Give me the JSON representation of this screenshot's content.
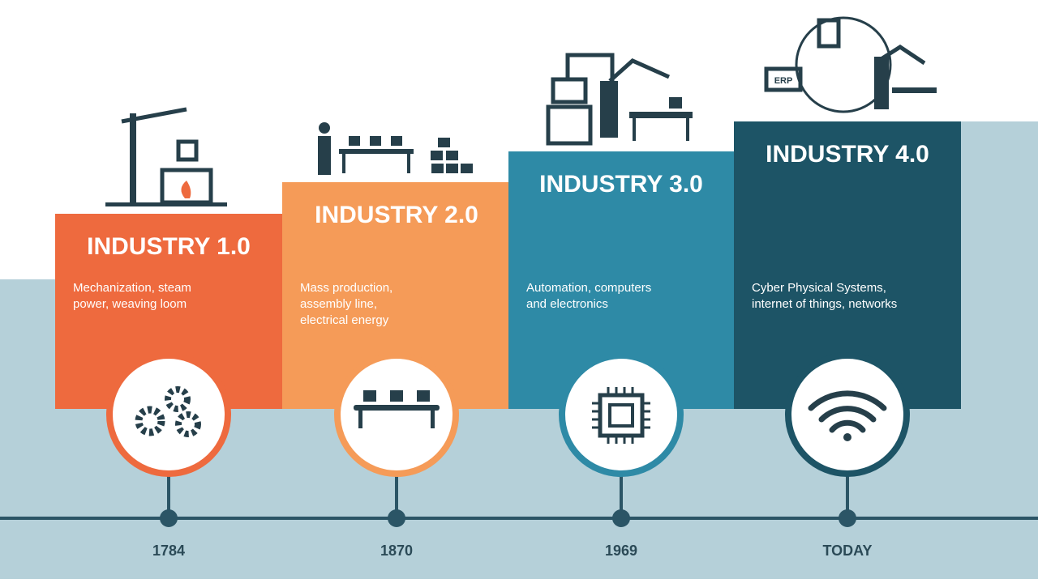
{
  "stages": [
    {
      "title": "INDUSTRY 1.0",
      "description": [
        "Mechanization, steam",
        "power, weaving loom"
      ],
      "year": "1784"
    },
    {
      "title": "INDUSTRY 2.0",
      "description": [
        "Mass production,",
        "assembly line,",
        "electrical energy"
      ],
      "year": "1870"
    },
    {
      "title": "INDUSTRY 3.0",
      "description": [
        "Automation, computers",
        "and electronics"
      ],
      "year": "1969"
    },
    {
      "title": "INDUSTRY 4.0",
      "description": [
        "Cyber Physical Systems,",
        "internet of things, networks"
      ],
      "year": "TODAY"
    }
  ],
  "illustration_labels": {
    "erp": "ERP"
  }
}
